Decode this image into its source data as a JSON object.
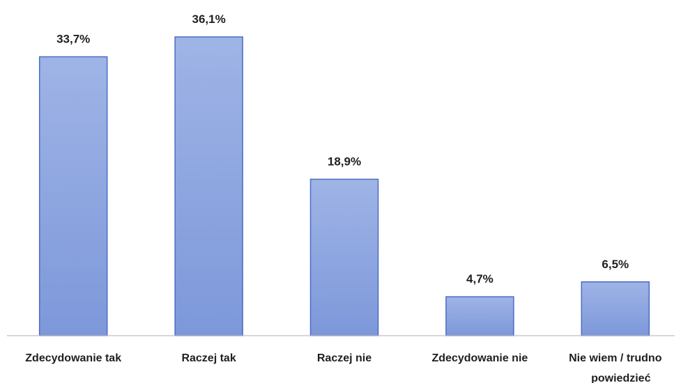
{
  "chart_data": {
    "type": "bar",
    "title": "",
    "xlabel": "",
    "ylabel": "",
    "categories": [
      [
        "Zdecydowanie tak"
      ],
      [
        "Raczej tak"
      ],
      [
        "Raczej nie"
      ],
      [
        "Zdecydowanie nie"
      ],
      [
        "Nie wiem / trudno",
        "powiedzieć"
      ]
    ],
    "values": [
      33.7,
      36.1,
      18.9,
      4.7,
      6.5
    ],
    "value_labels": [
      "33,7%",
      "36,1%",
      "18,9%",
      "4,7%",
      "6,5%"
    ],
    "ylim": [
      0,
      40
    ],
    "grid": false,
    "legend": "none",
    "colors": {
      "bar_top": "#9fb4e6",
      "bar_bottom": "#7d98da",
      "bar_stroke": "#4a6cc4",
      "axis": "#bfbfbf"
    }
  }
}
